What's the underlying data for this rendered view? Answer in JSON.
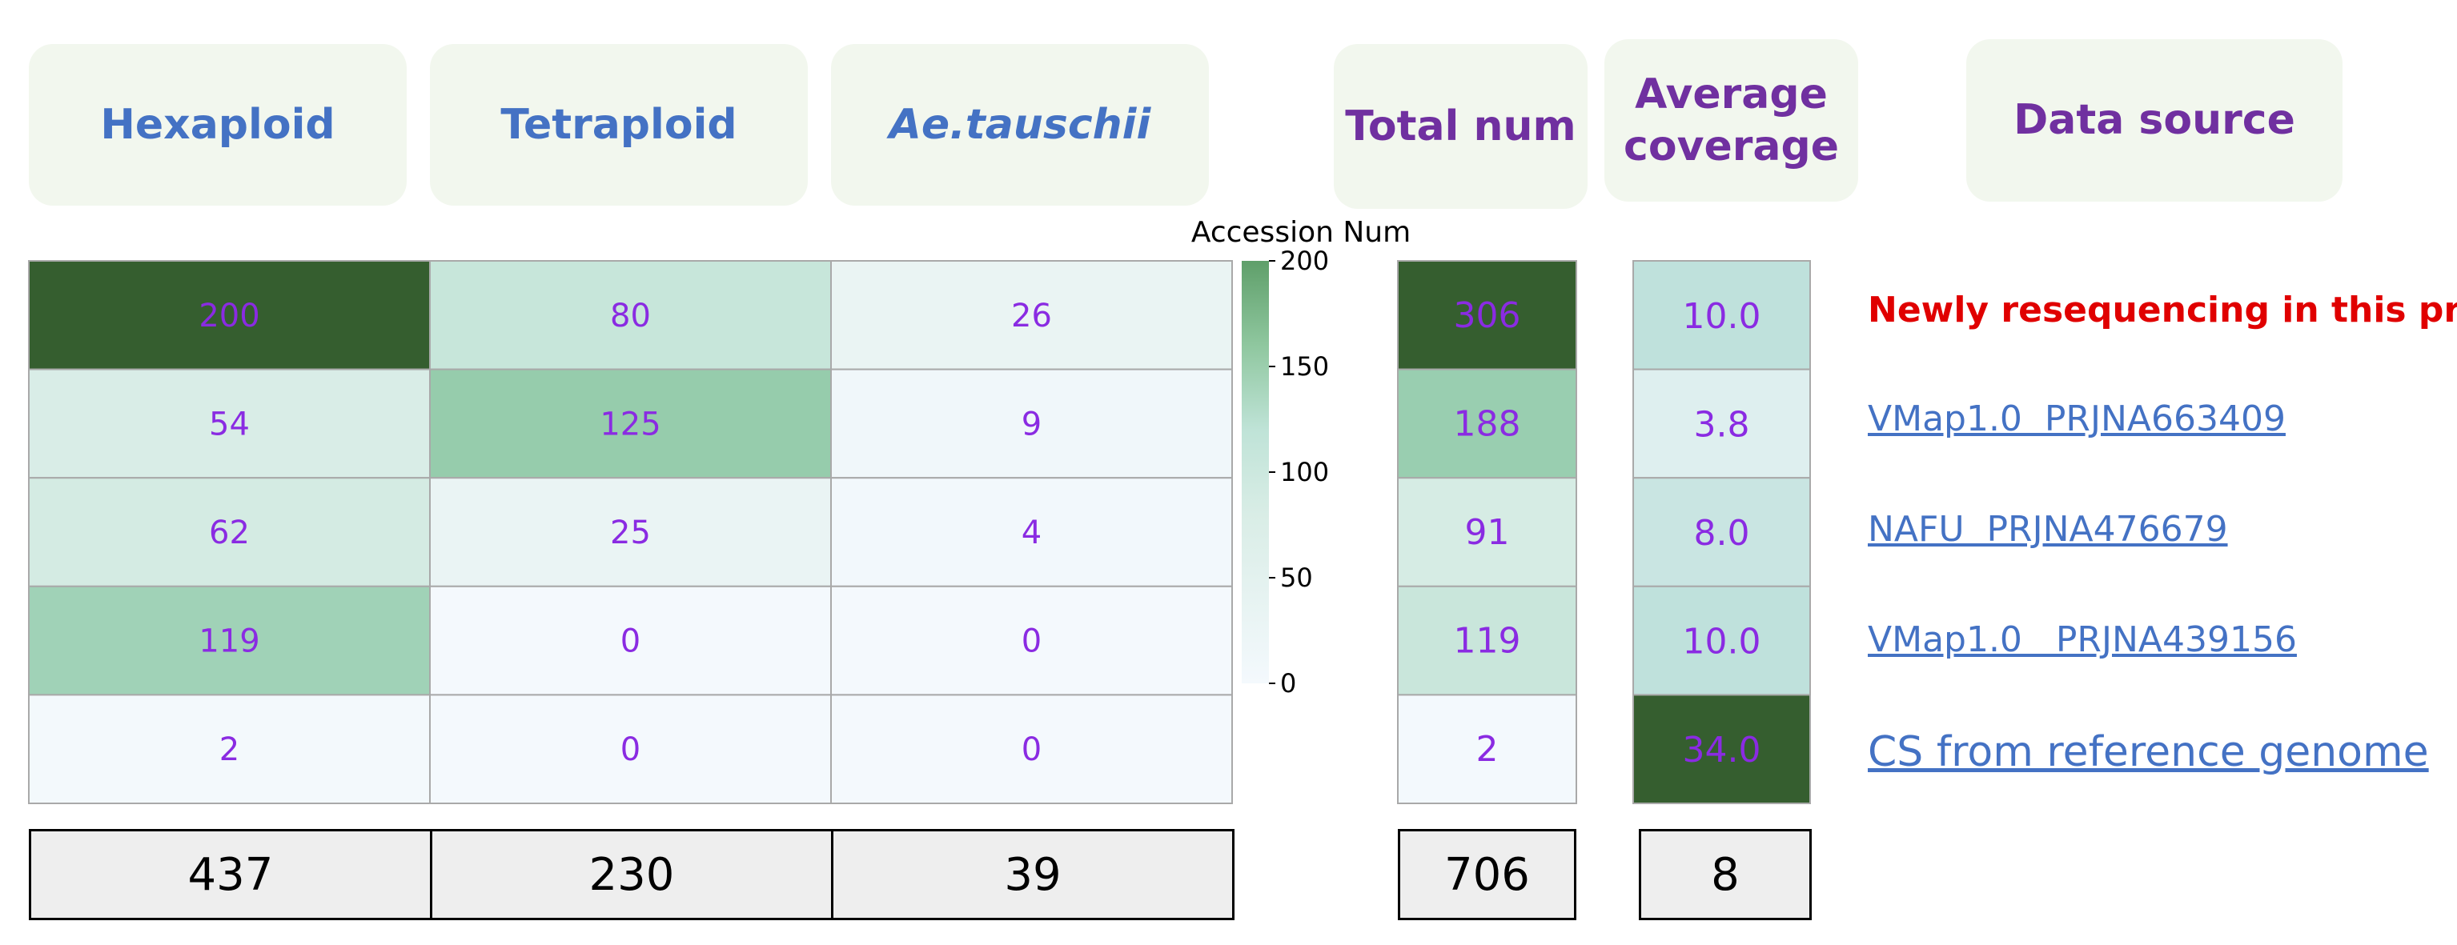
{
  "headers": {
    "hexaploid": "Hexaploid",
    "tetraploid": "Tetraploid",
    "aetauschii": "Ae.tauschii",
    "total": "Total num",
    "average": "Average coverage",
    "source": "Data source"
  },
  "chart_data": {
    "type": "heatmap",
    "columns": [
      "Hexaploid",
      "Tetraploid",
      "Ae.tauschii"
    ],
    "rows": [
      {
        "hexaploid": 200,
        "tetraploid": 80,
        "aetauschii": 26,
        "total": 306,
        "average": "10.0",
        "source": "Newly resequencing in this project"
      },
      {
        "hexaploid": 54,
        "tetraploid": 125,
        "aetauschii": 9,
        "total": 188,
        "average": "3.8",
        "source": "VMap1.0  PRJNA663409"
      },
      {
        "hexaploid": 62,
        "tetraploid": 25,
        "aetauschii": 4,
        "total": 91,
        "average": "8.0",
        "source": "NAFU  PRJNA476679"
      },
      {
        "hexaploid": 119,
        "tetraploid": 0,
        "aetauschii": 0,
        "total": 119,
        "average": "10.0",
        "source": "VMap1.0   PRJNA439156"
      },
      {
        "hexaploid": 2,
        "tetraploid": 0,
        "aetauschii": 0,
        "total": 2,
        "average": "34.0",
        "source": "CS from reference genome"
      }
    ],
    "colorbar": {
      "title": "Accession Num",
      "range": [
        0,
        200
      ],
      "ticks": [
        "0",
        "50",
        "100",
        "150",
        "200"
      ],
      "colors": {
        "low": "#f4f9fd",
        "mid": "#bfe3d7",
        "high": "#7bbb8e",
        "max": "#355e2f"
      }
    },
    "summary": {
      "hexaploid": "437",
      "tetraploid": "230",
      "aetauschii": "39",
      "total": "706",
      "average": "8"
    }
  }
}
